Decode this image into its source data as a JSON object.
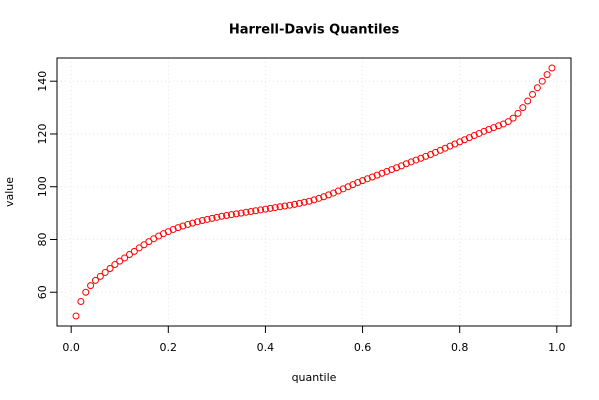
{
  "chart_data": {
    "type": "scatter",
    "title": "Harrell-Davis Quantiles",
    "x_label": "quantile",
    "y_label": "value",
    "color": "#ff0000",
    "grid": true,
    "xlim": [
      -0.0292,
      1.0292
    ],
    "ylim": [
      47.2,
      148.8
    ],
    "xticks": [
      {
        "value": 0,
        "label": "0.0"
      },
      0.2,
      0.4,
      0.6,
      0.8,
      {
        "value": 1,
        "label": "1.0"
      }
    ],
    "yticks": [
      60,
      80,
      100,
      120,
      140
    ],
    "x": [
      0.01,
      0.02,
      0.03,
      0.04,
      0.05,
      0.06,
      0.07,
      0.08,
      0.09,
      0.1,
      0.11,
      0.12,
      0.13,
      0.14,
      0.15,
      0.16,
      0.17,
      0.18,
      0.19,
      0.2,
      0.21,
      0.22,
      0.23,
      0.24,
      0.25,
      0.26,
      0.27,
      0.28,
      0.29,
      0.3,
      0.31,
      0.32,
      0.33,
      0.34,
      0.35,
      0.36,
      0.37,
      0.38,
      0.39,
      0.4,
      0.41,
      0.42,
      0.43,
      0.44,
      0.45,
      0.46,
      0.47,
      0.48,
      0.49,
      0.5,
      0.51,
      0.52,
      0.53,
      0.54,
      0.55,
      0.56,
      0.57,
      0.58,
      0.59,
      0.6,
      0.61,
      0.62,
      0.63,
      0.64,
      0.65,
      0.66,
      0.67,
      0.68,
      0.69,
      0.7,
      0.71,
      0.72,
      0.73,
      0.74,
      0.75,
      0.76,
      0.77,
      0.78,
      0.79,
      0.8,
      0.81,
      0.82,
      0.83,
      0.84,
      0.85,
      0.86,
      0.87,
      0.88,
      0.89,
      0.9,
      0.91,
      0.92,
      0.93,
      0.94,
      0.95,
      0.96,
      0.97,
      0.98,
      0.99
    ],
    "values": [
      51,
      56.5,
      60,
      62.5,
      64.5,
      66,
      67.5,
      69,
      70.5,
      71.8,
      73,
      74.3,
      75.5,
      76.8,
      78,
      79.2,
      80.3,
      81.3,
      82.2,
      83,
      83.8,
      84.5,
      85.1,
      85.7,
      86.2,
      86.7,
      87.2,
      87.6,
      88,
      88.4,
      88.8,
      89.1,
      89.4,
      89.7,
      90,
      90.3,
      90.6,
      90.9,
      91.2,
      91.5,
      91.8,
      92.1,
      92.4,
      92.7,
      93,
      93.3,
      93.7,
      94.1,
      94.5,
      95,
      95.6,
      96.2,
      96.9,
      97.6,
      98.4,
      99.2,
      100,
      100.8,
      101.6,
      102.3,
      103,
      103.7,
      104.4,
      105.1,
      105.8,
      106.5,
      107.2,
      107.9,
      108.7,
      109.4,
      110.1,
      110.8,
      111.5,
      112.2,
      113,
      113.8,
      114.6,
      115.4,
      116.2,
      117,
      117.8,
      118.6,
      119.4,
      120.2,
      121,
      121.7,
      122.4,
      123.1,
      123.8,
      124.7,
      126,
      127.8,
      130,
      132.5,
      135,
      137.5,
      140,
      142.5,
      145
    ]
  }
}
